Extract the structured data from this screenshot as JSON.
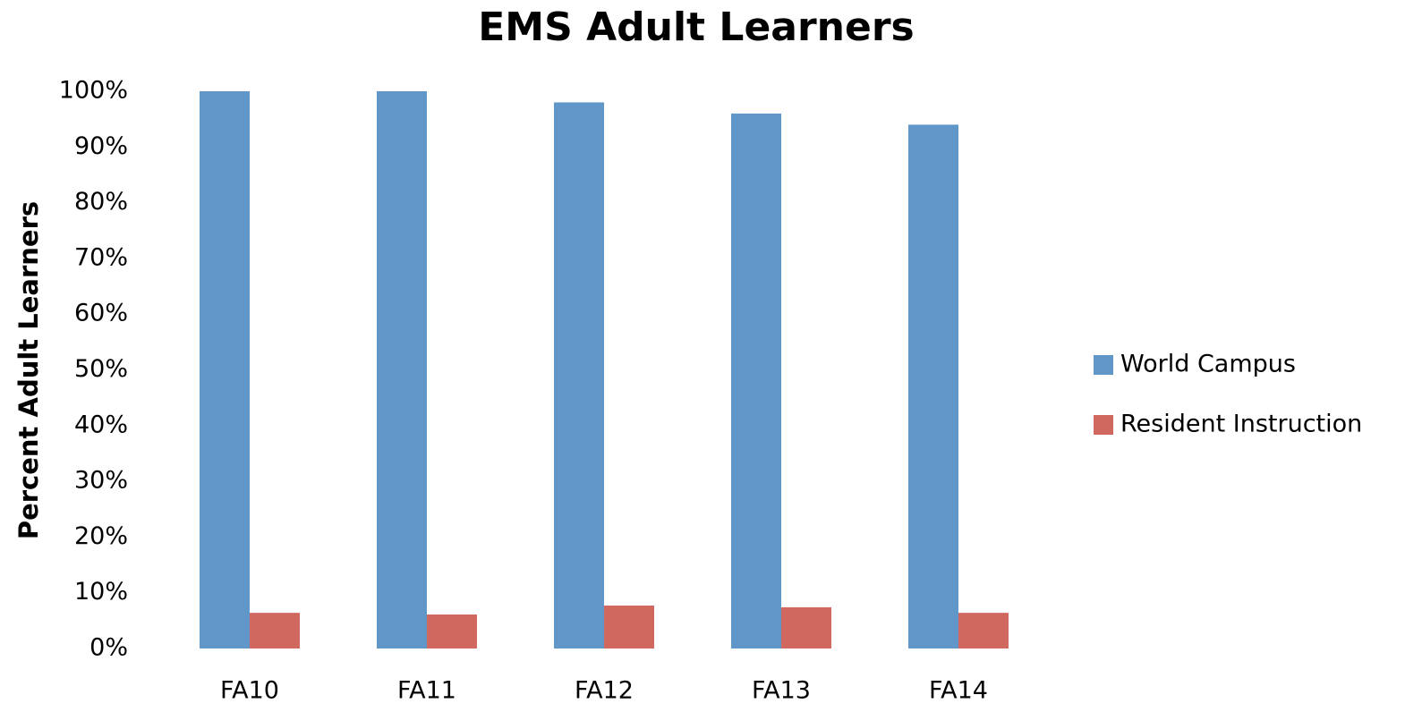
{
  "chart_data": {
    "type": "bar",
    "title": "EMS Adult Learners",
    "y_label": "Percent Adult Learners",
    "categories": [
      "FA10",
      "FA11",
      "FA12",
      "FA13",
      "FA14"
    ],
    "series": [
      {
        "name": "World Campus",
        "color": "#6197c8",
        "values": [
          100,
          100,
          98,
          96,
          94
        ]
      },
      {
        "name": "Resident Instruction",
        "color": "#d06860",
        "values": [
          6.4,
          6.1,
          7.7,
          7.4,
          6.4
        ]
      }
    ],
    "ylim": [
      0,
      100
    ],
    "yticks": [
      {
        "value": 0,
        "label": "0%"
      },
      {
        "value": 10,
        "label": "10%"
      },
      {
        "value": 20,
        "label": "20%"
      },
      {
        "value": 30,
        "label": "30%"
      },
      {
        "value": 40,
        "label": "40%"
      },
      {
        "value": 50,
        "label": "50%"
      },
      {
        "value": 60,
        "label": "60%"
      },
      {
        "value": 70,
        "label": "70%"
      },
      {
        "value": 80,
        "label": "80%"
      },
      {
        "value": 90,
        "label": "90%"
      },
      {
        "value": 100,
        "label": "100%"
      }
    ],
    "grid": false,
    "legend": "right"
  }
}
